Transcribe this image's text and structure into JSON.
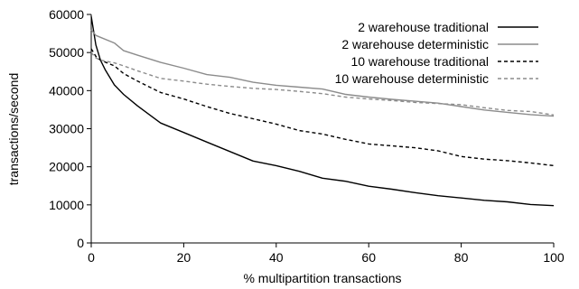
{
  "chart_data": {
    "type": "line",
    "xlabel": "% multipartition transactions",
    "ylabel": "transactions/second",
    "xlim": [
      0,
      100
    ],
    "ylim": [
      0,
      60000
    ],
    "x_ticks": [
      0,
      20,
      40,
      60,
      80,
      100
    ],
    "y_ticks": [
      0,
      10000,
      20000,
      30000,
      40000,
      50000,
      60000
    ],
    "grid": false,
    "legend_position": "top-right",
    "series": [
      {
        "name": "2 warehouse traditional",
        "color": "#000000",
        "dash": "solid",
        "x": [
          0,
          1,
          2,
          3,
          5,
          7,
          10,
          15,
          20,
          25,
          30,
          35,
          40,
          45,
          50,
          55,
          60,
          65,
          70,
          75,
          80,
          85,
          90,
          95,
          100
        ],
        "y": [
          59500,
          52000,
          48000,
          45500,
          41500,
          39000,
          36000,
          31500,
          29000,
          26500,
          24000,
          21500,
          20300,
          18800,
          17000,
          16200,
          14900,
          14100,
          13200,
          12400,
          11800,
          11200,
          10800,
          10100,
          9800
        ]
      },
      {
        "name": "2 warehouse deterministic",
        "color": "#8c8c8c",
        "dash": "solid",
        "x": [
          0,
          1,
          2,
          5,
          7,
          10,
          15,
          20,
          25,
          30,
          35,
          40,
          45,
          50,
          55,
          60,
          65,
          70,
          75,
          80,
          85,
          90,
          95,
          100
        ],
        "y": [
          56000,
          54500,
          54000,
          52500,
          50500,
          49300,
          47400,
          45900,
          44200,
          43500,
          42200,
          41400,
          40900,
          40400,
          39000,
          38300,
          37700,
          37200,
          36700,
          35800,
          34900,
          34300,
          33700,
          33300
        ]
      },
      {
        "name": "10 warehouse traditional",
        "color": "#000000",
        "dash": "dashed",
        "x": [
          0,
          1,
          2,
          5,
          7,
          10,
          15,
          20,
          25,
          30,
          35,
          40,
          45,
          50,
          55,
          60,
          65,
          70,
          75,
          80,
          85,
          90,
          95,
          100
        ],
        "y": [
          51000,
          49000,
          48000,
          46500,
          44500,
          42500,
          39500,
          37800,
          35800,
          34000,
          32600,
          31200,
          29500,
          28600,
          27200,
          26000,
          25500,
          25000,
          24200,
          22700,
          22000,
          21600,
          21000,
          20300
        ]
      },
      {
        "name": "10 warehouse deterministic",
        "color": "#8c8c8c",
        "dash": "dashed",
        "x": [
          0,
          1,
          2,
          5,
          7,
          10,
          15,
          20,
          25,
          30,
          35,
          40,
          45,
          50,
          55,
          60,
          65,
          70,
          75,
          80,
          85,
          90,
          95,
          100
        ],
        "y": [
          50000,
          48600,
          48000,
          47300,
          46500,
          45200,
          43200,
          42500,
          41700,
          41100,
          40600,
          40300,
          39800,
          39200,
          38300,
          37800,
          37400,
          36900,
          36600,
          36300,
          35500,
          34800,
          34500,
          33600
        ]
      }
    ]
  }
}
